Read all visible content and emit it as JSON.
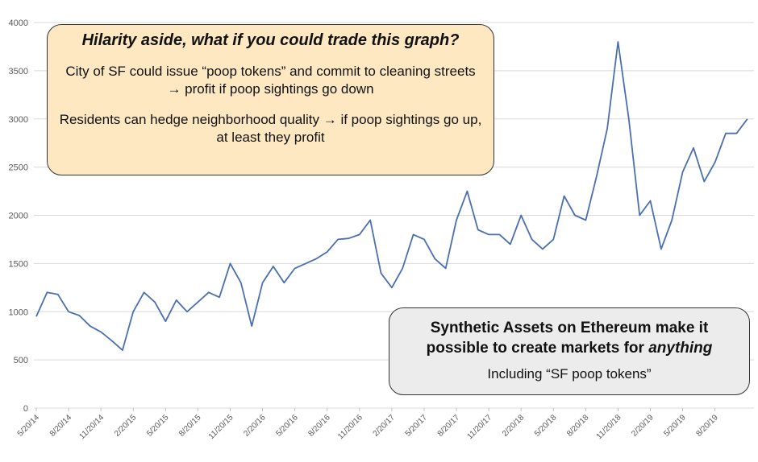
{
  "chart_data": {
    "type": "line",
    "x": [
      "5/20/14",
      "6/20/14",
      "7/20/14",
      "8/20/14",
      "9/20/14",
      "10/20/14",
      "11/20/14",
      "12/20/14",
      "1/20/15",
      "2/20/15",
      "3/20/15",
      "4/20/15",
      "5/20/15",
      "6/20/15",
      "7/20/15",
      "8/20/15",
      "9/20/15",
      "10/20/15",
      "11/20/15",
      "12/20/15",
      "1/20/16",
      "2/20/16",
      "3/20/16",
      "4/20/16",
      "5/20/16",
      "6/20/16",
      "7/20/16",
      "8/20/16",
      "9/20/16",
      "10/20/16",
      "11/20/16",
      "12/20/16",
      "1/20/17",
      "2/20/17",
      "3/20/17",
      "4/20/17",
      "5/20/17",
      "6/20/17",
      "7/20/17",
      "8/20/17",
      "9/20/17",
      "10/20/17",
      "11/20/17",
      "12/20/17",
      "1/20/18",
      "2/20/18",
      "3/20/18",
      "4/20/18",
      "5/20/18",
      "6/20/18",
      "7/20/18",
      "8/20/18",
      "9/20/18",
      "10/20/18",
      "11/20/18",
      "12/20/18",
      "1/20/19",
      "2/20/19",
      "3/20/19",
      "4/20/19",
      "5/20/19",
      "6/20/19",
      "7/20/19",
      "8/20/19",
      "9/20/19",
      "10/20/19",
      "11/20/19"
    ],
    "series": [
      {
        "color": "#4a6fb0",
        "values": [
          950,
          1200,
          1180,
          1000,
          960,
          850,
          790,
          700,
          600,
          1000,
          1200,
          1100,
          900,
          1120,
          1000,
          1100,
          1200,
          1150,
          1500,
          1300,
          850,
          1300,
          1470,
          1300,
          1450,
          1500,
          1550,
          1620,
          1750,
          1760,
          1800,
          1950,
          1400,
          1250,
          1450,
          1800,
          1750,
          1550,
          1450,
          1950,
          2250,
          1850,
          1800,
          1800,
          1700,
          2000,
          1750,
          1650,
          1750,
          2200,
          2000,
          1950,
          2400,
          2900,
          3800,
          3000,
          2000,
          2150,
          1650,
          1950,
          2450,
          2700,
          2350,
          2550,
          2850,
          2850,
          3000
        ]
      }
    ],
    "ylim": [
      0,
      4000
    ],
    "yticks": [
      0,
      500,
      1000,
      1500,
      2000,
      2500,
      3000,
      3500,
      4000
    ],
    "xticks": [
      "5/20/14",
      "8/20/14",
      "11/20/14",
      "2/20/15",
      "5/20/15",
      "8/20/15",
      "11/20/15",
      "2/20/16",
      "5/20/16",
      "8/20/16",
      "11/20/16",
      "2/20/17",
      "5/20/17",
      "8/20/17",
      "11/20/17",
      "2/20/18",
      "5/20/18",
      "8/20/18",
      "11/20/18",
      "2/20/19",
      "5/20/19",
      "8/20/19"
    ],
    "grid": true
  },
  "annotations": [
    {
      "title": "Hilarity aside, what if you could trade this graph?",
      "lines": [
        "City of SF could issue “poop tokens” and commit to cleaning streets → profit if poop sightings go down",
        "Residents can hedge neighborhood quality → if poop sightings go up, at least they profit"
      ]
    },
    {
      "title_plain": "Synthetic Assets on Ethereum make it possible to create markets for ",
      "title_italic": "anything",
      "lines": [
        "Including “SF poop tokens”"
      ]
    }
  ]
}
